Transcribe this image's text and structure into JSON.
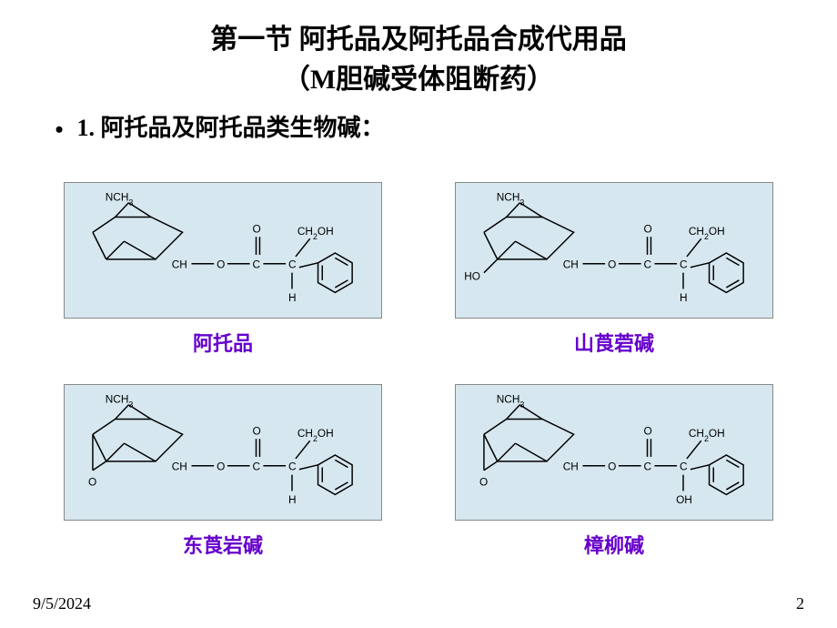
{
  "title": {
    "line1": "第一节 阿托品及阿托品合成代用品",
    "line2": "（M胆碱受体阻断药）",
    "fontsize": 30,
    "color": "#000000"
  },
  "bullet": {
    "marker": "•",
    "text": "1. 阿托品及阿托品类生物碱：",
    "fontsize": 26,
    "color": "#000000"
  },
  "molecules": [
    {
      "name": "阿托品",
      "caption_color": "#6600cc",
      "caption_fontsize": 22,
      "variant": "A"
    },
    {
      "name": "山莨菪碱",
      "caption_color": "#6600cc",
      "caption_fontsize": 22,
      "variant": "B"
    },
    {
      "name": "东莨岩碱",
      "caption_color": "#6600cc",
      "caption_fontsize": 22,
      "variant": "C"
    },
    {
      "name": "樟柳碱",
      "caption_color": "#6600cc",
      "caption_fontsize": 22,
      "variant": "D"
    }
  ],
  "diagram_style": {
    "bg_color": "#d6e7ef",
    "border_color": "#888888",
    "stroke": "#000000",
    "label_fontsize": 12,
    "label_color": "#000000"
  },
  "chem_labels": {
    "nch3": "NCH",
    "nch3_sub": "3",
    "ch": "CH",
    "o": "O",
    "c": "C",
    "h": "H",
    "ho": "HO",
    "oh": "OH",
    "ch2oh": "CH",
    "ch2oh_sub": "2",
    "ch2oh_tail": "OH"
  },
  "footer": {
    "date": "9/5/2024",
    "page": "2",
    "fontsize": 18,
    "color": "#000000"
  },
  "layout": {
    "slide_w": 920,
    "slide_h": 690,
    "grid_cols": 2,
    "grid_rows": 2,
    "diagram_w": 350,
    "diagram_h": 150
  }
}
